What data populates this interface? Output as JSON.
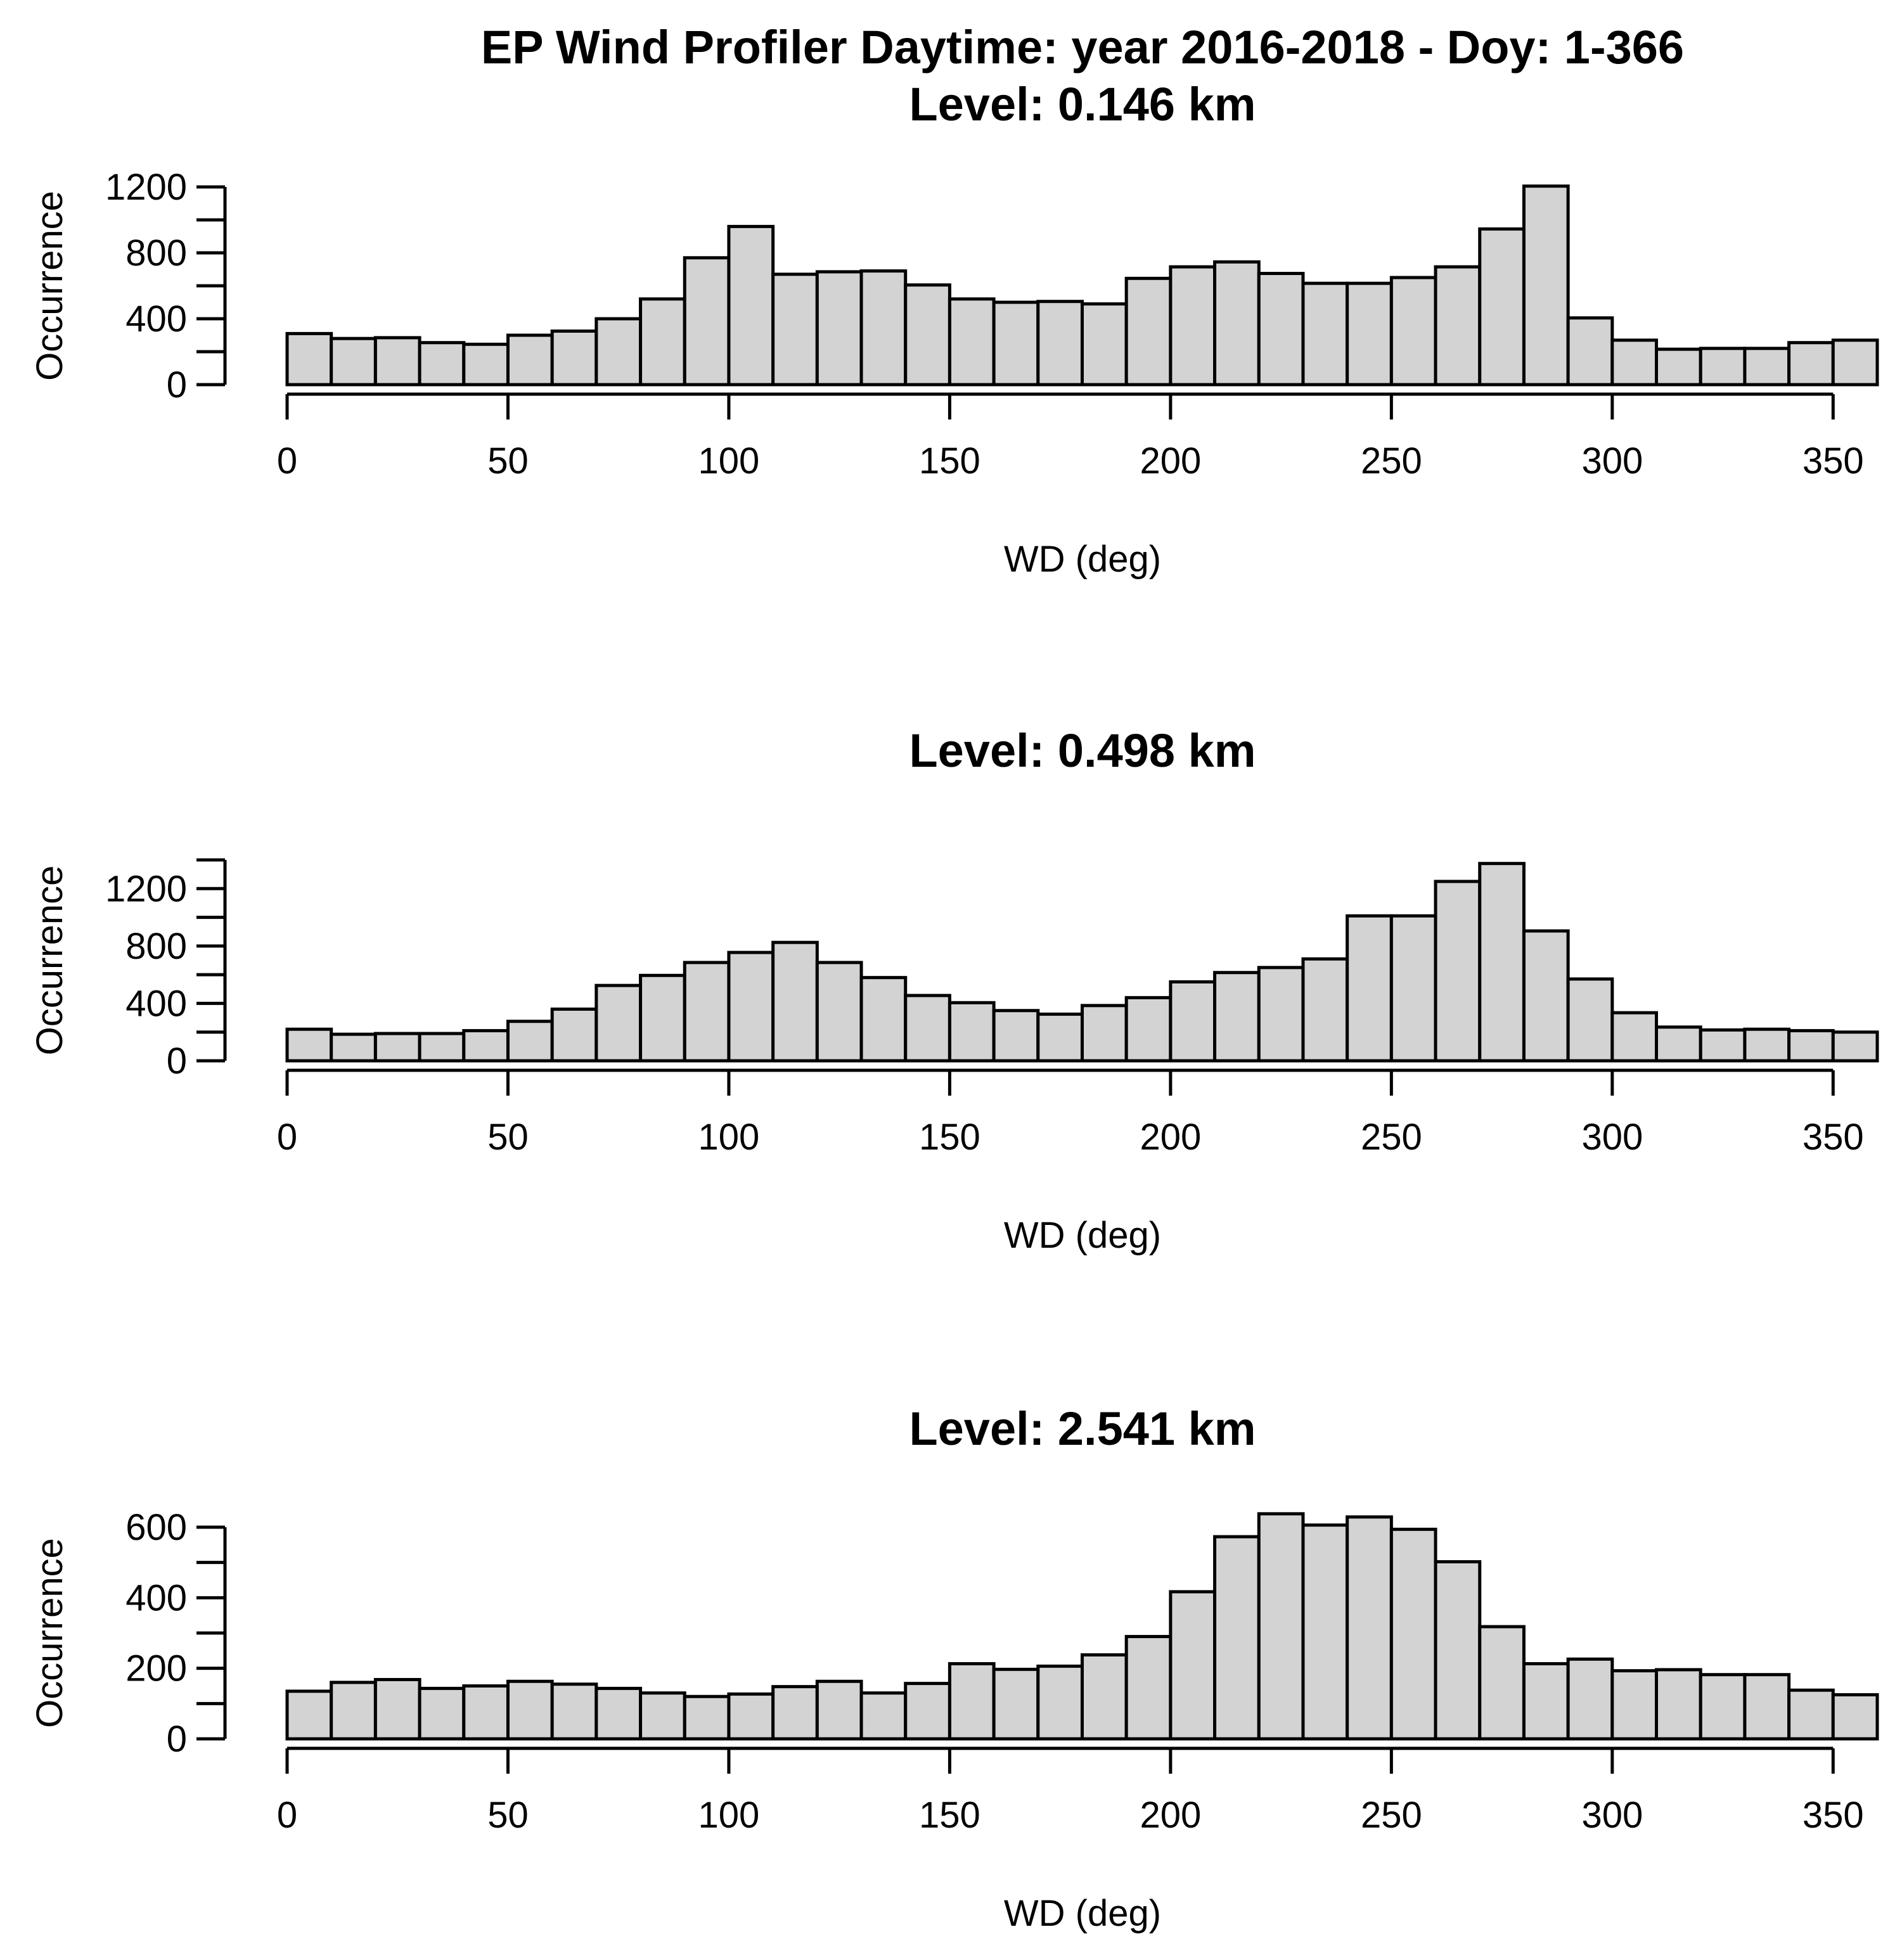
{
  "figure_title": "EP Wind Profiler Daytime: year 2016-2018 - Doy: 1-366",
  "chart_data": [
    {
      "type": "bar",
      "title": "Level: 0.146 km",
      "xlabel": "WD (deg)",
      "ylabel": "Occurrence",
      "bin_width": 10,
      "bins_start": [
        0,
        10,
        20,
        30,
        40,
        50,
        60,
        70,
        80,
        90,
        100,
        110,
        120,
        130,
        140,
        150,
        160,
        170,
        180,
        190,
        200,
        210,
        220,
        230,
        240,
        250,
        260,
        270,
        280,
        290,
        300,
        310,
        320,
        330,
        340,
        350
      ],
      "values": [
        310,
        280,
        285,
        255,
        245,
        300,
        325,
        400,
        520,
        770,
        960,
        670,
        685,
        690,
        605,
        520,
        500,
        505,
        490,
        645,
        715,
        745,
        675,
        615,
        615,
        650,
        715,
        945,
        1205,
        405,
        270,
        215,
        220,
        220,
        255,
        270
      ],
      "xlim": [
        0,
        360
      ],
      "ylim": [
        0,
        1200
      ],
      "xticks": [
        0,
        50,
        100,
        150,
        200,
        250,
        300,
        350
      ],
      "yticks": [
        0,
        400,
        800,
        1200
      ]
    },
    {
      "type": "bar",
      "title": "Level: 0.498 km",
      "xlabel": "WD (deg)",
      "ylabel": "Occurrence",
      "bin_width": 10,
      "bins_start": [
        0,
        10,
        20,
        30,
        40,
        50,
        60,
        70,
        80,
        90,
        100,
        110,
        120,
        130,
        140,
        150,
        160,
        170,
        180,
        190,
        200,
        210,
        220,
        230,
        240,
        250,
        260,
        270,
        280,
        290,
        300,
        310,
        320,
        330,
        340,
        350
      ],
      "values": [
        220,
        185,
        190,
        190,
        210,
        275,
        360,
        525,
        595,
        685,
        755,
        825,
        685,
        580,
        455,
        405,
        350,
        325,
        385,
        440,
        550,
        615,
        650,
        710,
        1010,
        1010,
        1250,
        1375,
        905,
        570,
        335,
        235,
        215,
        220,
        210,
        200
      ],
      "xlim": [
        0,
        360
      ],
      "ylim": [
        0,
        1400
      ],
      "xticks": [
        0,
        50,
        100,
        150,
        200,
        250,
        300,
        350
      ],
      "yticks": [
        0,
        400,
        800,
        1200
      ]
    },
    {
      "type": "bar",
      "title": "Level: 2.541 km",
      "xlabel": "WD (deg)",
      "ylabel": "Occurrence",
      "bin_width": 10,
      "bins_start": [
        0,
        10,
        20,
        30,
        40,
        50,
        60,
        70,
        80,
        90,
        100,
        110,
        120,
        130,
        140,
        150,
        160,
        170,
        180,
        190,
        200,
        210,
        220,
        230,
        240,
        250,
        260,
        270,
        280,
        290,
        300,
        310,
        320,
        330,
        340,
        350
      ],
      "values": [
        135,
        160,
        168,
        143,
        150,
        163,
        155,
        143,
        130,
        120,
        127,
        148,
        163,
        130,
        157,
        213,
        197,
        206,
        238,
        290,
        417,
        573,
        638,
        606,
        629,
        594,
        502,
        318,
        213,
        226,
        193,
        196,
        182,
        182,
        138,
        125
      ],
      "xlim": [
        0,
        360
      ],
      "ylim": [
        0,
        600
      ],
      "xticks": [
        0,
        50,
        100,
        150,
        200,
        250,
        300,
        350
      ],
      "yticks": [
        0,
        200,
        400,
        600
      ]
    }
  ]
}
